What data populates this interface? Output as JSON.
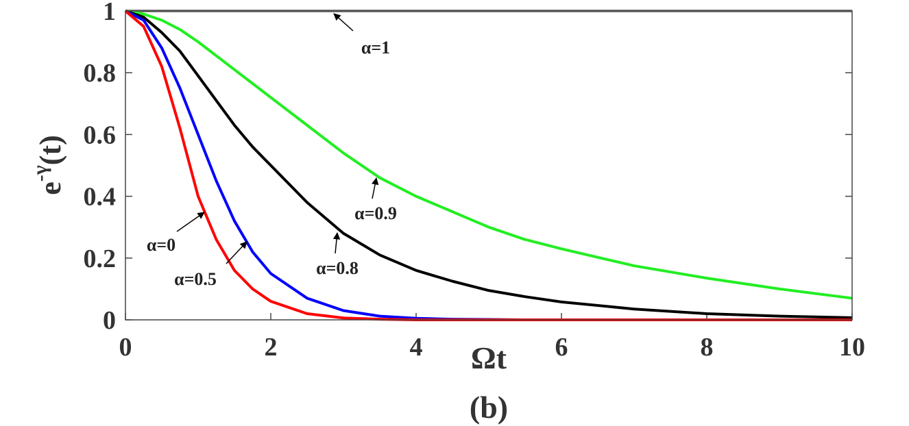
{
  "chart_data": {
    "type": "line",
    "ylabel": {
      "base": "e",
      "superscript": "-γ",
      "tail": "(t)"
    },
    "xlabel": "Ωt",
    "caption": "(b)",
    "x": [
      0,
      0.25,
      0.5,
      0.75,
      1,
      1.25,
      1.5,
      1.75,
      2,
      2.5,
      3,
      3.5,
      4,
      4.5,
      5,
      5.5,
      6,
      7,
      8,
      9,
      10
    ],
    "series": [
      {
        "name": "α=1",
        "color": "#808080",
        "values": [
          1,
          1,
          1,
          1,
          1,
          1,
          1,
          1,
          1,
          1,
          1,
          1,
          1,
          1,
          1,
          1,
          1,
          1,
          1,
          1,
          1
        ]
      },
      {
        "name": "α=0.9",
        "color": "#22ee22",
        "values": [
          1,
          0.99,
          0.97,
          0.94,
          0.9,
          0.855,
          0.81,
          0.765,
          0.72,
          0.63,
          0.54,
          0.46,
          0.4,
          0.35,
          0.3,
          0.26,
          0.23,
          0.175,
          0.135,
          0.1,
          0.07
        ]
      },
      {
        "name": "α=0.8",
        "color": "#000000",
        "values": [
          1,
          0.98,
          0.93,
          0.87,
          0.79,
          0.71,
          0.63,
          0.56,
          0.5,
          0.38,
          0.28,
          0.21,
          0.16,
          0.125,
          0.095,
          0.075,
          0.058,
          0.035,
          0.02,
          0.012,
          0.007
        ]
      },
      {
        "name": "α=0.5",
        "color": "#0000ff",
        "values": [
          1,
          0.97,
          0.88,
          0.75,
          0.6,
          0.45,
          0.32,
          0.22,
          0.15,
          0.07,
          0.03,
          0.012,
          0.005,
          0.002,
          0.001,
          0,
          0,
          0,
          0,
          0,
          0
        ]
      },
      {
        "name": "α=0",
        "color": "#ff0000",
        "values": [
          1,
          0.95,
          0.82,
          0.62,
          0.4,
          0.26,
          0.16,
          0.1,
          0.06,
          0.02,
          0.006,
          0.002,
          0,
          0,
          0,
          0,
          0,
          0,
          0,
          0,
          0
        ]
      }
    ],
    "xlim": [
      0,
      10
    ],
    "ylim": [
      0,
      1
    ],
    "xticks": [
      0,
      2,
      4,
      6,
      8,
      10
    ],
    "yticks": [
      0,
      0.2,
      0.4,
      0.6,
      0.8,
      1
    ]
  }
}
